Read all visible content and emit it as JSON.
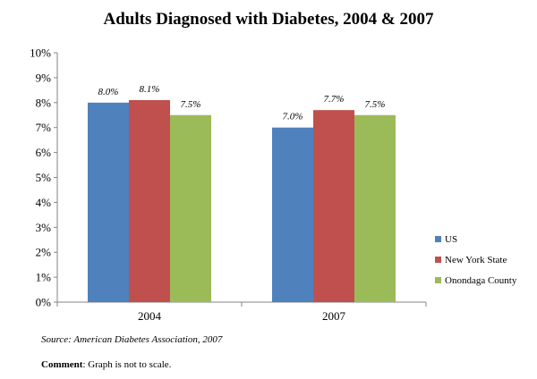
{
  "chart_data": {
    "type": "bar",
    "title": "Adults Diagnosed with Diabetes, 2004 & 2007",
    "categories": [
      "2004",
      "2007"
    ],
    "series": [
      {
        "name": "US",
        "color": "#4f81bd",
        "values": [
          8.0,
          7.0
        ],
        "labels": [
          "8.0%",
          "7.0%"
        ]
      },
      {
        "name": "New York State",
        "color": "#c0504d",
        "values": [
          8.1,
          7.7
        ],
        "labels": [
          "8.1%",
          "7.7%"
        ]
      },
      {
        "name": "Onondaga County",
        "color": "#9bbb59",
        "values": [
          7.5,
          7.5
        ],
        "labels": [
          "7.5%",
          "7.5%"
        ]
      }
    ],
    "ylim": [
      0,
      10
    ],
    "yticks": [
      "0%",
      "1%",
      "2%",
      "3%",
      "4%",
      "5%",
      "6%",
      "7%",
      "8%",
      "9%",
      "10%"
    ],
    "xlabel": "",
    "ylabel": "",
    "grid": false,
    "legend_position": "right"
  },
  "source_text": "Source: American Diabetes Association, 2007",
  "comment": {
    "label": "Comment",
    "text": ": Graph is not to scale."
  }
}
